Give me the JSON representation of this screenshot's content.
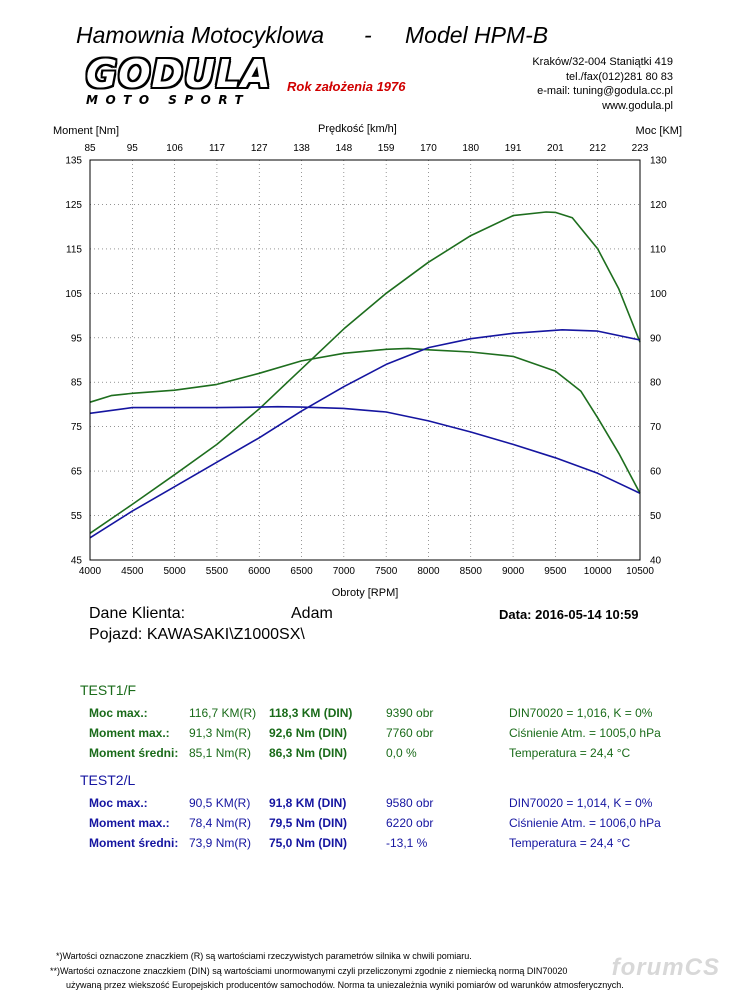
{
  "header": {
    "title_left": "Hamownia Motocyklowa",
    "dash": "-",
    "title_right": "Model HPM-B",
    "logo_main": "GODULA",
    "logo_sub": "MOTO SPORT",
    "since": "Rok założenia 1976",
    "contact": [
      "Kraków/32-004 Staniątki 419",
      "tel./fax(012)281 80 83",
      "e-mail: tuning@godula.cc.pl",
      "www.godula.pl"
    ]
  },
  "chart_data": {
    "type": "line",
    "title": "",
    "xlabel": "Obroty [RPM]",
    "ylabel_left": "Moment [Nm]",
    "ylabel_right": "Moc [KM]",
    "top_label": "Prędkość [km/h]",
    "xlim": [
      4000,
      10500
    ],
    "ylim_left": [
      45,
      135
    ],
    "ylim_right": [
      40,
      130
    ],
    "grid": true,
    "x_ticks": [
      "4000",
      "4500",
      "5000",
      "5500",
      "6000",
      "6500",
      "7000",
      "7500",
      "8000",
      "8500",
      "9000",
      "9500",
      "10000",
      "10500"
    ],
    "y_ticks_left": [
      "45",
      "55",
      "65",
      "75",
      "85",
      "95",
      "105",
      "115",
      "125",
      "135"
    ],
    "y_ticks_right": [
      "40",
      "50",
      "60",
      "70",
      "80",
      "90",
      "100",
      "110",
      "120",
      "130"
    ],
    "speed_ticks": [
      "85",
      "95",
      "106",
      "117",
      "127",
      "138",
      "148",
      "159",
      "170",
      "180",
      "191",
      "201",
      "212",
      "223"
    ],
    "series": [
      {
        "name": "TEST1/F moment",
        "color": "#1e6e1e",
        "axis": "left",
        "x": [
          4000,
          4250,
          4500,
          5000,
          5500,
          6000,
          6500,
          7000,
          7500,
          7760,
          8000,
          8500,
          9000,
          9500,
          9800,
          10000,
          10250,
          10500
        ],
        "y": [
          80.5,
          82,
          82.5,
          83.2,
          84.5,
          87,
          89.8,
          91.5,
          92.4,
          92.6,
          92.3,
          91.8,
          90.8,
          87.5,
          83,
          77,
          69,
          60
        ]
      },
      {
        "name": "TEST1/F moc",
        "color": "#1e6e1e",
        "axis": "right",
        "x": [
          4000,
          4500,
          5000,
          5500,
          6000,
          6500,
          7000,
          7500,
          8000,
          8500,
          9000,
          9390,
          9500,
          9700,
          10000,
          10250,
          10500
        ],
        "y": [
          46,
          52.5,
          59.2,
          66,
          74,
          83,
          92,
          100,
          107,
          113,
          117.5,
          118.3,
          118.2,
          117,
          110,
          101,
          89
        ]
      },
      {
        "name": "TEST2/L moment",
        "color": "#1515a0",
        "axis": "left",
        "x": [
          4000,
          4500,
          5000,
          5500,
          6000,
          6220,
          6500,
          7000,
          7500,
          8000,
          8500,
          9000,
          9500,
          10000,
          10500
        ],
        "y": [
          78,
          79.3,
          79.3,
          79.3,
          79.4,
          79.5,
          79.4,
          79.1,
          78.3,
          76.3,
          73.8,
          71,
          68,
          64.5,
          60
        ]
      },
      {
        "name": "TEST2/L moc",
        "color": "#1515a0",
        "axis": "right",
        "x": [
          4000,
          4500,
          5000,
          5500,
          6000,
          6500,
          7000,
          7500,
          8000,
          8500,
          9000,
          9580,
          10000,
          10500
        ],
        "y": [
          45,
          51,
          56.5,
          62,
          67.5,
          73.5,
          79,
          84,
          87.8,
          89.8,
          91,
          91.8,
          91.5,
          89.5
        ]
      }
    ]
  },
  "client": {
    "label": "Dane Klienta:",
    "name": "Adam",
    "vehicle": "Pojazd: KAWASAKI\\Z1000SX\\",
    "date": "Data: 2016-05-14  10:59"
  },
  "tests": [
    {
      "title": "TEST1/F",
      "rows": [
        {
          "label": "Moc max.:",
          "raw": "116,7 KM(R)",
          "din": "118,3 KM (DIN)",
          "extra": "9390 obr",
          "env": "DIN70020 = 1,016, K = 0%"
        },
        {
          "label": "Moment max.:",
          "raw": "91,3 Nm(R)",
          "din": "92,6 Nm (DIN)",
          "extra": "7760 obr",
          "env": "Ciśnienie Atm. = 1005,0 hPa"
        },
        {
          "label": "Moment średni:",
          "raw": "85,1 Nm(R)",
          "din": "86,3 Nm (DIN)",
          "extra": "0,0 %",
          "env": "Temperatura = 24,4 °C"
        }
      ]
    },
    {
      "title": "TEST2/L",
      "rows": [
        {
          "label": "Moc max.:",
          "raw": "90,5 KM(R)",
          "din": "91,8 KM (DIN)",
          "extra": "9580 obr",
          "env": "DIN70020 = 1,014, K = 0%"
        },
        {
          "label": "Moment max.:",
          "raw": "78,4 Nm(R)",
          "din": "79,5 Nm (DIN)",
          "extra": "6220 obr",
          "env": "Ciśnienie Atm. = 1006,0 hPa"
        },
        {
          "label": "Moment średni:",
          "raw": "73,9 Nm(R)",
          "din": "75,0 Nm (DIN)",
          "extra": "-13,1 %",
          "env": "Temperatura = 24,4 °C"
        }
      ]
    }
  ],
  "footnotes": [
    "*)Wartości oznaczone znaczkiem (R) są wartościami rzeczywistych parametrów silnika w chwili pomiaru.",
    "**)Wartości oznaczone znaczkiem (DIN) są wartościami unormowanymi czyli przeliczonymi zgodnie z niemiecką normą DIN70020",
    "używaną przez wiekszość Europejskich  producentów  samochodów. Norma ta uniezależnia wyniki pomiarów od warunków atmosferycznych."
  ],
  "watermark": "forumCS"
}
